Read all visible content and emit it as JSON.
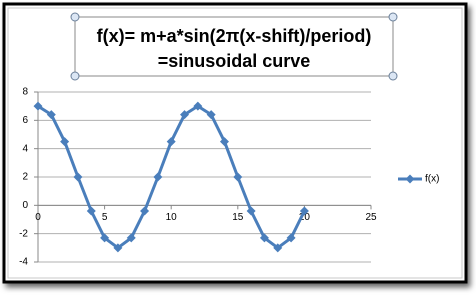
{
  "chart_data": {
    "type": "line",
    "title": "f(x)= m+a*sin(2π(x-shift)/period)",
    "subtitle": "=sinusoidal curve",
    "x": [
      0,
      1,
      2,
      3,
      4,
      5,
      6,
      7,
      8,
      9,
      10,
      11,
      12,
      13,
      14,
      15,
      16,
      17,
      18,
      19,
      20
    ],
    "series": [
      {
        "name": "f(x)",
        "color": "#4a7ebb",
        "values": [
          7,
          6.4,
          4.5,
          2,
          -0.4,
          -2.3,
          -3,
          -2.3,
          -0.4,
          2,
          4.5,
          6.4,
          7,
          6.4,
          4.5,
          2,
          -0.4,
          -2.3,
          -3,
          -2.3,
          -0.4
        ]
      }
    ],
    "xlim": [
      0,
      25
    ],
    "xticks": [
      0,
      5,
      10,
      15,
      20,
      25
    ],
    "ylim": [
      -4,
      8
    ],
    "yticks": [
      -4,
      -2,
      0,
      2,
      4,
      6,
      8
    ],
    "grid": true,
    "legend": "right"
  }
}
